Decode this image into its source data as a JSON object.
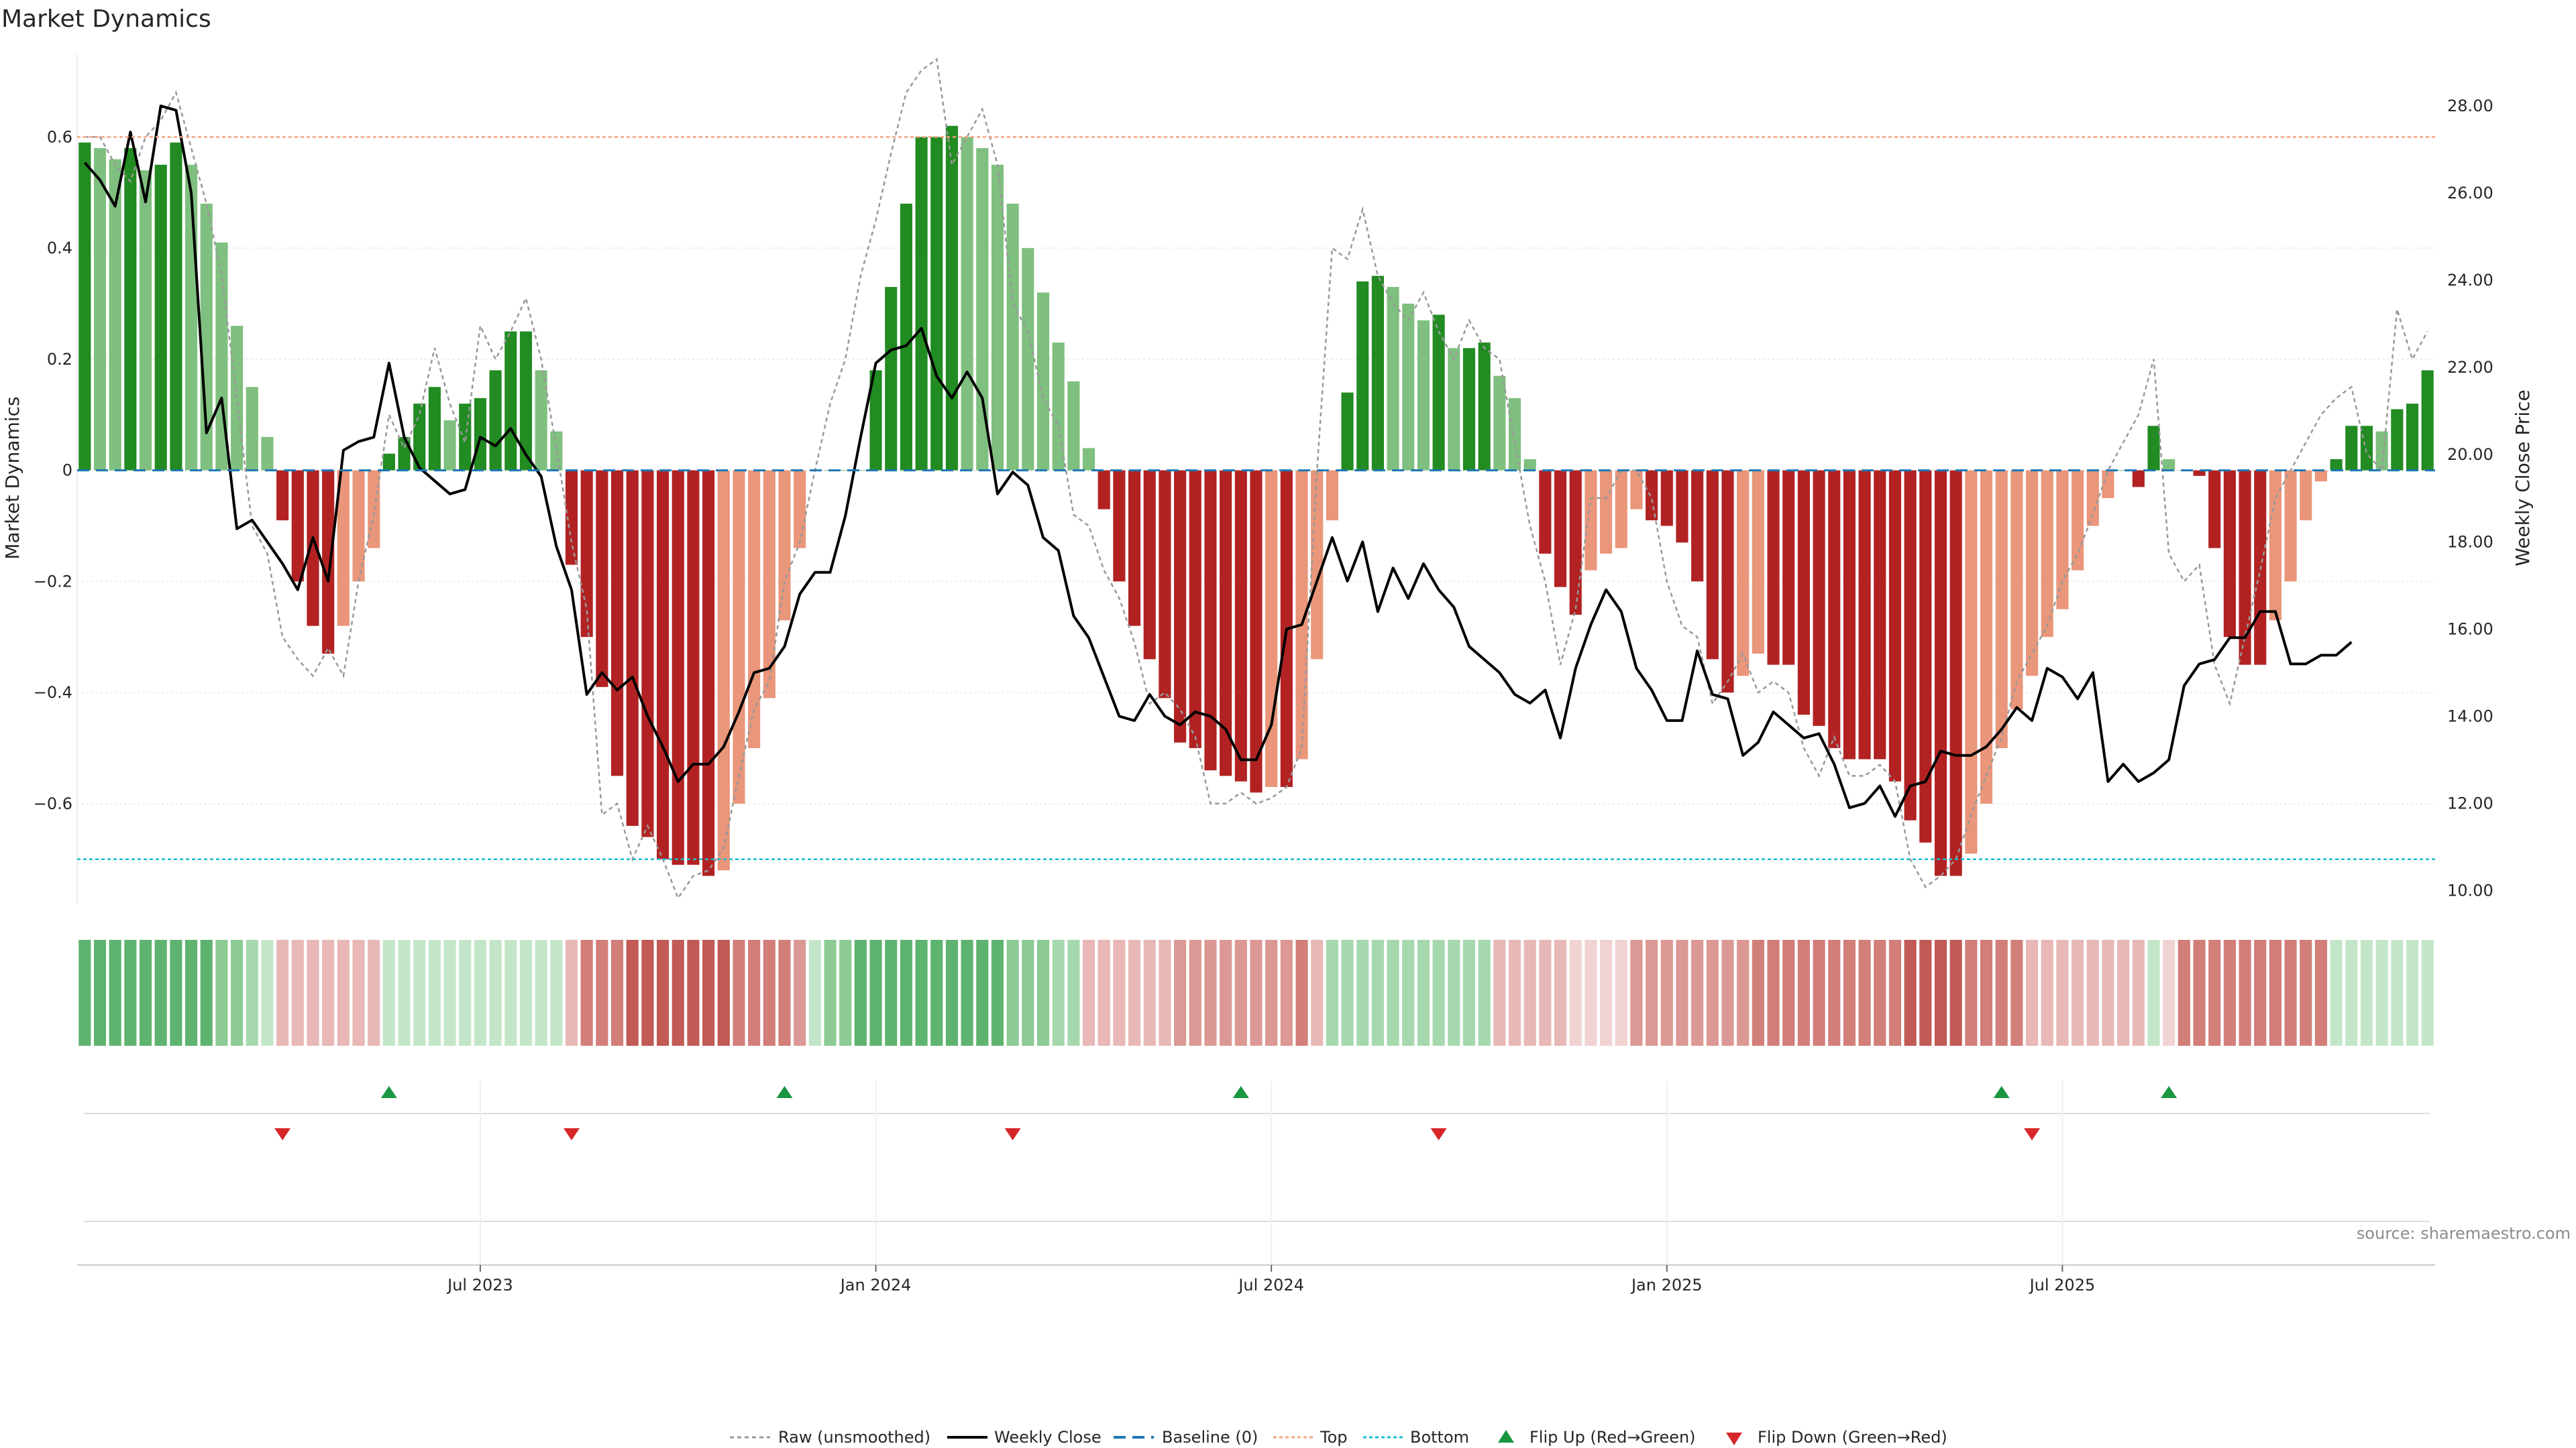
{
  "title": "Market Dynamics",
  "source_note": "source: sharemaestro.com",
  "colors": {
    "bar_strong_green": "#228b22",
    "bar_light_green": "#7fbf7f",
    "bar_strong_red": "#b22222",
    "bar_light_red": "#e9967a",
    "price_line": "#000000",
    "raw_line": "#999999",
    "baseline": "#1f77b4",
    "top_line": "#f4a582",
    "bottom_line": "#17becf",
    "flip_up": "#1a9641",
    "flip_down": "#d62728"
  },
  "legend": {
    "raw": "Raw (unsmoothed)",
    "close": "Weekly Close",
    "baseline": "Baseline (0)",
    "top": "Top",
    "bottom": "Bottom",
    "flip_up": "Flip Up (Red→Green)",
    "flip_down": "Flip Down (Green→Red)"
  },
  "chart_data": {
    "type": "bar",
    "title": "Market Dynamics",
    "ylabel": "Market Dynamics",
    "ylabel_right": "Weekly Close Price",
    "ylim": [
      -0.78,
      0.75
    ],
    "ylim_right": [
      9.7,
      29.2
    ],
    "yticks": [
      -0.6,
      -0.4,
      -0.2,
      0,
      0.2,
      0.4,
      0.6
    ],
    "ytick_labels": [
      "−0.6",
      "−0.4",
      "−0.2",
      "0",
      "0.2",
      "0.4",
      "0.6"
    ],
    "yticks_right": [
      10,
      12,
      14,
      16,
      18,
      20,
      22,
      24,
      26,
      28
    ],
    "ytick_labels_right": [
      "10.00",
      "12.00",
      "14.00",
      "16.00",
      "18.00",
      "20.00",
      "22.00",
      "24.00",
      "26.00",
      "28.00"
    ],
    "x_start": "2023-01-02",
    "x_step_days": 7,
    "xticks": [
      {
        "week": 26,
        "label": "Jul 2023"
      },
      {
        "week": 52,
        "label": "Jan 2024"
      },
      {
        "week": 78,
        "label": "Jul 2024"
      },
      {
        "week": 104,
        "label": "Jan 2025"
      },
      {
        "week": 130,
        "label": "Jul 2025"
      }
    ],
    "top_level": 0.6,
    "bottom_level": -0.7,
    "grid": true,
    "legend_position": "bottom-center",
    "series": [
      {
        "name": "Market Dynamics",
        "values": [
          0.59,
          0.58,
          0.56,
          0.58,
          0.54,
          0.55,
          0.59,
          0.55,
          0.48,
          0.41,
          0.26,
          0.15,
          0.06,
          -0.09,
          -0.2,
          -0.28,
          -0.33,
          -0.28,
          -0.2,
          -0.14,
          0.03,
          0.06,
          0.12,
          0.15,
          0.09,
          0.12,
          0.13,
          0.18,
          0.25,
          0.25,
          0.18,
          0.07,
          -0.17,
          -0.3,
          -0.39,
          -0.55,
          -0.64,
          -0.66,
          -0.7,
          -0.71,
          -0.71,
          -0.73,
          -0.72,
          -0.6,
          -0.5,
          -0.41,
          -0.27,
          -0.14,
          0.0,
          0.0,
          0.0,
          0.0,
          0.18,
          0.33,
          0.48,
          0.6,
          0.6,
          0.62,
          0.6,
          0.58,
          0.55,
          0.48,
          0.4,
          0.32,
          0.23,
          0.16,
          0.04,
          -0.07,
          -0.2,
          -0.28,
          -0.34,
          -0.41,
          -0.49,
          -0.5,
          -0.54,
          -0.55,
          -0.56,
          -0.58,
          -0.57,
          -0.57,
          -0.52,
          -0.34,
          -0.09,
          0.14,
          0.34,
          0.35,
          0.33,
          0.3,
          0.27,
          0.28,
          0.22,
          0.22,
          0.23,
          0.17,
          0.13,
          0.02,
          -0.15,
          -0.21,
          -0.26,
          -0.18,
          -0.15,
          -0.14,
          -0.07,
          -0.09,
          -0.1,
          -0.13,
          -0.2,
          -0.34,
          -0.4,
          -0.37,
          -0.33,
          -0.35,
          -0.35,
          -0.44,
          -0.46,
          -0.5,
          -0.52,
          -0.52,
          -0.52,
          -0.56,
          -0.63,
          -0.67,
          -0.73,
          -0.73,
          -0.69,
          -0.6,
          -0.5,
          -0.43,
          -0.37,
          -0.3,
          -0.25,
          -0.18,
          -0.1,
          -0.05,
          0.0,
          -0.03,
          0.08,
          0.02,
          0.0,
          -0.01,
          -0.14,
          -0.3,
          -0.35,
          -0.35,
          -0.27,
          -0.2,
          -0.09,
          -0.02,
          0.02,
          0.08,
          0.08,
          0.07,
          0.11,
          0.12,
          0.18
        ]
      },
      {
        "name": "Raw (unsmoothed)",
        "values": [
          0.6,
          0.6,
          0.55,
          0.52,
          0.6,
          0.63,
          0.68,
          0.58,
          0.48,
          0.35,
          0.13,
          -0.1,
          -0.15,
          -0.3,
          -0.34,
          -0.37,
          -0.32,
          -0.37,
          -0.2,
          -0.08,
          0.1,
          0.04,
          0.1,
          0.22,
          0.12,
          0.05,
          0.26,
          0.2,
          0.25,
          0.31,
          0.2,
          0.04,
          -0.13,
          -0.25,
          -0.62,
          -0.6,
          -0.7,
          -0.64,
          -0.7,
          -0.77,
          -0.73,
          -0.72,
          -0.68,
          -0.55,
          -0.43,
          -0.38,
          -0.2,
          -0.13,
          0.0,
          0.12,
          0.2,
          0.35,
          0.45,
          0.57,
          0.68,
          0.72,
          0.74,
          0.55,
          0.6,
          0.65,
          0.55,
          0.3,
          0.25,
          0.13,
          0.08,
          -0.08,
          -0.1,
          -0.18,
          -0.23,
          -0.31,
          -0.42,
          -0.4,
          -0.43,
          -0.48,
          -0.6,
          -0.6,
          -0.58,
          -0.6,
          -0.59,
          -0.57,
          -0.5,
          0.0,
          0.4,
          0.38,
          0.47,
          0.35,
          0.3,
          0.27,
          0.32,
          0.25,
          0.2,
          0.27,
          0.22,
          0.2,
          0.05,
          -0.1,
          -0.2,
          -0.35,
          -0.25,
          -0.05,
          -0.05,
          0.0,
          0.0,
          -0.05,
          -0.2,
          -0.28,
          -0.3,
          -0.42,
          -0.38,
          -0.33,
          -0.4,
          -0.38,
          -0.4,
          -0.5,
          -0.55,
          -0.48,
          -0.55,
          -0.55,
          -0.53,
          -0.56,
          -0.7,
          -0.75,
          -0.73,
          -0.7,
          -0.62,
          -0.55,
          -0.48,
          -0.38,
          -0.33,
          -0.28,
          -0.2,
          -0.15,
          -0.08,
          0.0,
          0.05,
          0.1,
          0.2,
          -0.15,
          -0.2,
          -0.17,
          -0.35,
          -0.42,
          -0.3,
          -0.18,
          -0.05,
          0.0,
          0.05,
          0.1,
          0.13,
          0.15,
          0.03,
          0.0,
          0.29,
          0.2,
          0.25
        ]
      },
      {
        "name": "Weekly Close",
        "values": [
          26.7,
          26.3,
          25.7,
          27.4,
          25.8,
          28.0,
          27.9,
          26.0,
          20.5,
          21.3,
          18.3,
          18.5,
          18.0,
          17.5,
          16.9,
          18.1,
          17.1,
          20.1,
          20.3,
          20.4,
          22.1,
          20.4,
          19.7,
          19.4,
          19.1,
          19.2,
          20.4,
          20.2,
          20.6,
          20.0,
          19.5,
          17.9,
          16.9,
          14.5,
          15.0,
          14.6,
          14.9,
          14.0,
          13.3,
          12.5,
          12.9,
          12.9,
          13.3,
          14.1,
          15.0,
          15.1,
          15.6,
          16.8,
          17.3,
          17.3,
          18.6,
          20.4,
          22.1,
          22.4,
          22.5,
          22.9,
          21.8,
          21.3,
          21.9,
          21.3,
          19.1,
          19.6,
          19.3,
          18.1,
          17.8,
          16.3,
          15.8,
          14.9,
          14.0,
          13.9,
          14.5,
          14.0,
          13.8,
          14.1,
          14.0,
          13.7,
          13.0,
          13.0,
          13.8,
          16.0,
          16.1,
          17.1,
          18.1,
          17.1,
          18.0,
          16.4,
          17.4,
          16.7,
          17.5,
          16.9,
          16.5,
          15.6,
          15.3,
          15.0,
          14.5,
          14.3,
          14.6,
          13.5,
          15.1,
          16.1,
          16.9,
          16.4,
          15.1,
          14.6,
          13.9,
          13.9,
          15.5,
          14.5,
          14.4,
          13.1,
          13.4,
          14.1,
          13.8,
          13.5,
          13.6,
          12.9,
          11.9,
          12.0,
          12.4,
          11.7,
          12.4,
          12.5,
          13.2,
          13.1,
          13.1,
          13.3,
          13.7,
          14.2,
          13.9,
          15.1,
          14.9,
          14.4,
          15.0,
          12.5,
          12.9,
          12.5,
          12.7,
          13.0,
          14.7,
          15.2,
          15.3,
          15.8,
          15.8,
          16.4,
          16.4,
          15.2,
          15.2,
          15.4,
          15.4,
          15.7
        ]
      }
    ],
    "regime_strip": [
      "g1",
      "g1",
      "g1",
      "g1",
      "g1",
      "g1",
      "g1",
      "g1",
      "g1",
      "g2",
      "g2",
      "g3",
      "g4",
      "r4",
      "r4",
      "r4",
      "r4",
      "r4",
      "r4",
      "r4",
      "g4",
      "g4",
      "g4",
      "g4",
      "g4",
      "g4",
      "g4",
      "g4",
      "g4",
      "g4",
      "g4",
      "g4",
      "r4",
      "r2",
      "r2",
      "r2",
      "r1",
      "r1",
      "r1",
      "r1",
      "r1",
      "r1",
      "r1",
      "r2",
      "r2",
      "r2",
      "r2",
      "r3",
      "g4",
      "g2",
      "g2",
      "g1",
      "g1",
      "g1",
      "g1",
      "g1",
      "g1",
      "g1",
      "g1",
      "g1",
      "g1",
      "g2",
      "g2",
      "g2",
      "g3",
      "g3",
      "r4",
      "r4",
      "r4",
      "r4",
      "r4",
      "r4",
      "r3",
      "r3",
      "r3",
      "r3",
      "r3",
      "r3",
      "r3",
      "r3",
      "r2",
      "r4",
      "g3",
      "g3",
      "g3",
      "g3",
      "g3",
      "g3",
      "g3",
      "g3",
      "g3",
      "g3",
      "g3",
      "r4",
      "r4",
      "r4",
      "r4",
      "r4",
      "r5",
      "r5",
      "r5",
      "r5",
      "r3",
      "r3",
      "r3",
      "r3",
      "r3",
      "r3",
      "r3",
      "r3",
      "r2",
      "r2",
      "r2",
      "r2",
      "r2",
      "r2",
      "r2",
      "r2",
      "r2",
      "r2",
      "r1",
      "r1",
      "r1",
      "r1",
      "r2",
      "r2",
      "r2",
      "r2",
      "r4",
      "r4",
      "r4",
      "r4",
      "r4",
      "r4",
      "r4",
      "r4",
      "g4",
      "r5",
      "r2",
      "r2",
      "r2",
      "r2",
      "r2",
      "r2",
      "r2",
      "r2",
      "r2",
      "r2",
      "g4",
      "g4",
      "g4",
      "g4",
      "g4",
      "g4",
      "g4"
    ],
    "flip_up_weeks": [
      20,
      46,
      76,
      126,
      137
    ],
    "flip_down_weeks": [
      13,
      32,
      61,
      89,
      128
    ]
  }
}
